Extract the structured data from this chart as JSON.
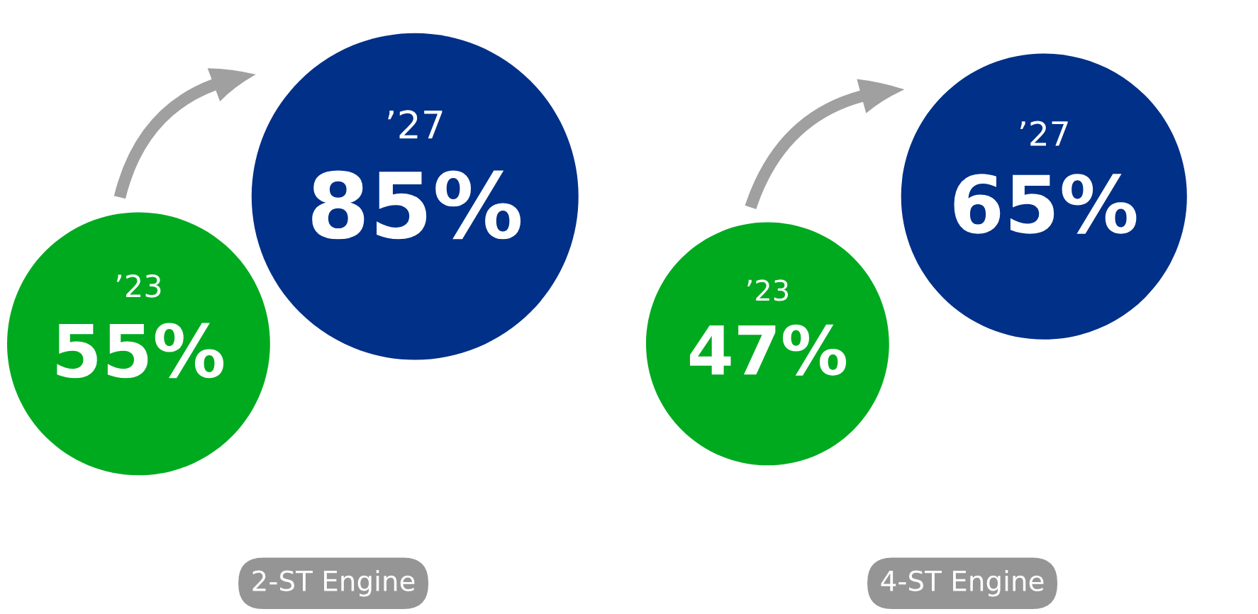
{
  "chart_data": [
    {
      "type": "other",
      "title": "2-ST Engine",
      "categories": [
        "’23",
        "’27"
      ],
      "values": [
        55,
        85
      ],
      "value_labels": [
        "55%",
        "85%"
      ],
      "colors": [
        "#00aa1f",
        "#003087"
      ]
    },
    {
      "type": "other",
      "title": "4-ST Engine",
      "categories": [
        "’23",
        "’27"
      ],
      "values": [
        47,
        65
      ],
      "value_labels": [
        "47%",
        "65%"
      ],
      "colors": [
        "#00aa1f",
        "#003087"
      ]
    }
  ]
}
